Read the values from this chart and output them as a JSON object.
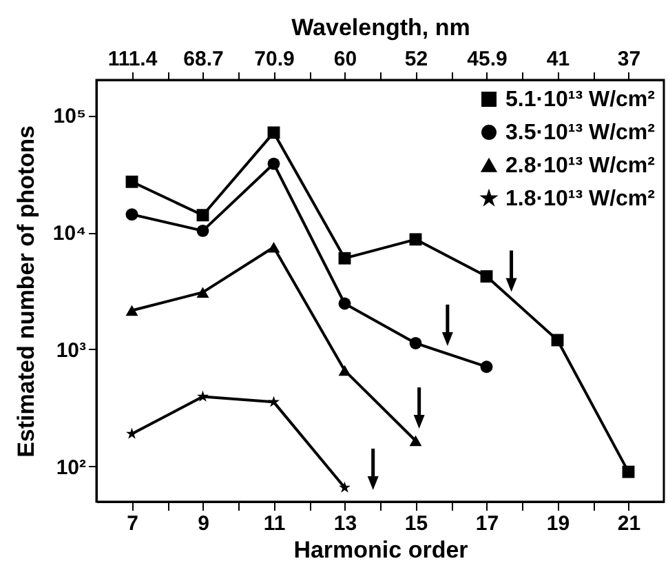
{
  "chart_data": {
    "type": "line",
    "xlabel": "Harmonic order",
    "ylabel": "Estimated number of photons",
    "x2label": "Wavelength, nm",
    "x": [
      7,
      9,
      11,
      13,
      15,
      17,
      19,
      21
    ],
    "series": [
      {
        "name": "5.1·10¹³ W/cm²",
        "color": "#000000",
        "marker": "square",
        "values": [
          27000,
          14000,
          71000,
          6000,
          8700,
          4200,
          1200,
          90
        ]
      },
      {
        "name": "3.5·10¹³ W/cm²",
        "color": "#000000",
        "marker": "circle",
        "values": [
          14200,
          10300,
          38500,
          2460,
          1130,
          710,
          null,
          null
        ]
      },
      {
        "name": "2.8·10¹³ W/cm²",
        "color": "#000000",
        "marker": "triangle",
        "values": [
          2150,
          3070,
          7450,
          660,
          166,
          null,
          null,
          null
        ]
      },
      {
        "name": "1.8·10¹³ W/cm²",
        "color": "#000000",
        "marker": "star",
        "values": [
          190,
          395,
          355,
          66,
          null,
          null,
          null,
          null
        ]
      }
    ],
    "xlim": [
      6,
      22
    ],
    "xticks": [
      7,
      {
        "value": 8,
        "label": null
      },
      9,
      {
        "value": 10,
        "label": null
      },
      11,
      {
        "value": 12,
        "label": null
      },
      13,
      {
        "value": 14,
        "label": null
      },
      15,
      {
        "value": 16,
        "label": null
      },
      17,
      {
        "value": 18,
        "label": null
      },
      19,
      {
        "value": 20,
        "label": null
      },
      21
    ],
    "ylim": [
      50,
      200000
    ],
    "log": "y",
    "yticks": [
      {
        "value": 100,
        "label": "10²"
      },
      {
        "value": 1000,
        "label": "10³"
      },
      {
        "value": 10000,
        "label": "10⁴"
      },
      {
        "value": 100000,
        "label": "10⁵"
      }
    ],
    "legend": "top right",
    "grid": false,
    "line_style": "solid",
    "annotations": [
      "111.4",
      "68.7",
      "70.9",
      "60",
      "52",
      "45.9",
      "41",
      "37"
    ]
  }
}
